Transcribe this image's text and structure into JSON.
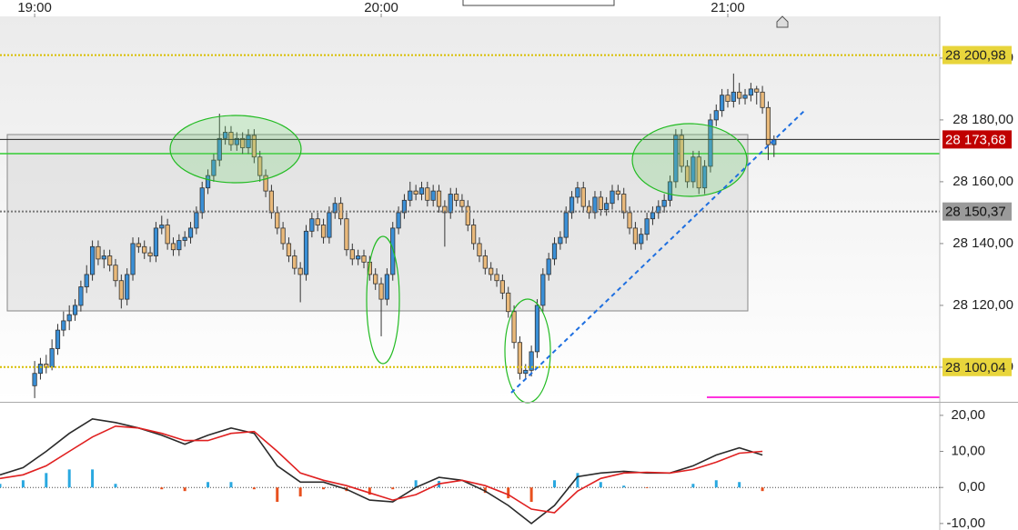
{
  "chart_data": [
    {
      "type": "candlestick",
      "up_color": "#3a8fd6",
      "down_color": "#e9b97a",
      "outline_color": "#333333",
      "xlim": [
        -6,
        156.7
      ],
      "xticks": [
        {
          "value": 0,
          "label": "19:00"
        },
        {
          "value": 60,
          "label": "20:00"
        },
        {
          "value": 120,
          "label": "21:00"
        }
      ],
      "ylim": [
        28088.8,
        28213.5
      ],
      "yticks": [
        {
          "value": 28100,
          "label": "28 100,00"
        },
        {
          "value": 28120,
          "label": "28 120,00"
        },
        {
          "value": 28140,
          "label": "28 140,00"
        },
        {
          "value": 28160,
          "label": "28 160,00"
        },
        {
          "value": 28180,
          "label": "28 180,00"
        },
        {
          "value": 28200,
          "label": "28 200,00"
        }
      ],
      "levels": [
        {
          "value": 28200.98,
          "label": "28 200,98",
          "line_color": "#d8be00",
          "dash": true,
          "box_color": "#e8d53c",
          "text_color": "#222222"
        },
        {
          "value": 28100.04,
          "label": "28 100,04",
          "line_color": "#d8be00",
          "dash": true,
          "box_color": "#e8d53c",
          "text_color": "#222222"
        },
        {
          "value": 28150.37,
          "label": "28 150,37",
          "line_color": "#777777",
          "dash": true,
          "box_color": "#9a9a9a",
          "text_color": "#111111"
        },
        {
          "value": 28173.68,
          "label": "28 173,68",
          "line_color": "#222222",
          "dash": false,
          "box_color": "#c00000",
          "text_color": "#ffffff"
        }
      ],
      "x": [
        0,
        1,
        2,
        3,
        4,
        5,
        6,
        7,
        8,
        9,
        10,
        11,
        12,
        13,
        14,
        15,
        16,
        17,
        18,
        19,
        20,
        21,
        22,
        23,
        24,
        25,
        26,
        27,
        28,
        29,
        30,
        31,
        32,
        33,
        34,
        35,
        36,
        37,
        38,
        39,
        40,
        41,
        42,
        43,
        44,
        45,
        46,
        47,
        48,
        49,
        50,
        51,
        52,
        53,
        54,
        55,
        56,
        57,
        58,
        59,
        60,
        61,
        62,
        63,
        64,
        65,
        66,
        67,
        68,
        69,
        70,
        71,
        72,
        73,
        74,
        75,
        76,
        77,
        78,
        79,
        80,
        81,
        82,
        83,
        84,
        85,
        86,
        87,
        88,
        89,
        90,
        91,
        92,
        93,
        94,
        95,
        96,
        97,
        98,
        99,
        100,
        101,
        102,
        103,
        104,
        105,
        106,
        107,
        108,
        109,
        110,
        111,
        112,
        113,
        114,
        115,
        116,
        117,
        118,
        119,
        120,
        121,
        122,
        123,
        124,
        125,
        126,
        127,
        128
      ],
      "ohlc": [
        [
          28094,
          28102,
          28090,
          28098
        ],
        [
          28098,
          28103,
          28096,
          28101
        ],
        [
          28101,
          28104,
          28098,
          28100
        ],
        [
          28100,
          28109,
          28099,
          28106
        ],
        [
          28106,
          28114,
          28104,
          28112
        ],
        [
          28112,
          28118,
          28110,
          28115
        ],
        [
          28115,
          28120,
          28112,
          28117
        ],
        [
          28117,
          28122,
          28115,
          28120
        ],
        [
          28120,
          28128,
          28118,
          28126
        ],
        [
          28126,
          28133,
          28124,
          28130
        ],
        [
          28130,
          28141,
          28128,
          28139
        ],
        [
          28139,
          28141,
          28133,
          28135
        ],
        [
          28135,
          28138,
          28132,
          28136
        ],
        [
          28136,
          28138,
          28131,
          28133
        ],
        [
          28133,
          28135,
          28126,
          28128
        ],
        [
          28128,
          28130,
          28119,
          28122
        ],
        [
          28122,
          28132,
          28120,
          28130
        ],
        [
          28130,
          28142,
          28128,
          28140
        ],
        [
          28140,
          28142,
          28137,
          28139
        ],
        [
          28139,
          28141,
          28135,
          28137
        ],
        [
          28137,
          28139,
          28134,
          28136
        ],
        [
          28136,
          28147,
          28134,
          28145
        ],
        [
          28145,
          28149,
          28143,
          28146
        ],
        [
          28146,
          28148,
          28138,
          28140
        ],
        [
          28140,
          28142,
          28136,
          28138
        ],
        [
          28138,
          28143,
          28136,
          28141
        ],
        [
          28141,
          28144,
          28139,
          28142
        ],
        [
          28142,
          28147,
          28140,
          28145
        ],
        [
          28145,
          28152,
          28143,
          28150
        ],
        [
          28150,
          28160,
          28148,
          28158
        ],
        [
          28158,
          28164,
          28156,
          28162
        ],
        [
          28162,
          28169,
          28160,
          28167
        ],
        [
          28167,
          28182,
          28165,
          28174
        ],
        [
          28174,
          28178,
          28172,
          28176
        ],
        [
          28176,
          28178,
          28170,
          28172
        ],
        [
          28172,
          28176,
          28170,
          28174
        ],
        [
          28174,
          28176,
          28169,
          28171
        ],
        [
          28171,
          28177,
          28169,
          28175
        ],
        [
          28175,
          28177,
          28166,
          28168
        ],
        [
          28168,
          28170,
          28160,
          28162
        ],
        [
          28162,
          28164,
          28155,
          28157
        ],
        [
          28157,
          28159,
          28148,
          28150
        ],
        [
          28150,
          28152,
          28143,
          28145
        ],
        [
          28145,
          28147,
          28138,
          28140
        ],
        [
          28140,
          28142,
          28134,
          28136
        ],
        [
          28136,
          28138,
          28130,
          28132
        ],
        [
          28132,
          28134,
          28121,
          28130
        ],
        [
          28130,
          28146,
          28128,
          28144
        ],
        [
          28144,
          28150,
          28142,
          28148
        ],
        [
          28148,
          28150,
          28144,
          28146
        ],
        [
          28146,
          28148,
          28140,
          28142
        ],
        [
          28142,
          28152,
          28140,
          28150
        ],
        [
          28150,
          28155,
          28148,
          28153
        ],
        [
          28153,
          28155,
          28146,
          28148
        ],
        [
          28148,
          28150,
          28136,
          28138
        ],
        [
          28138,
          28140,
          28133,
          28135
        ],
        [
          28135,
          28138,
          28133,
          28136
        ],
        [
          28136,
          28138,
          28132,
          28134
        ],
        [
          28134,
          28136,
          28128,
          28130
        ],
        [
          28130,
          28132,
          28125,
          28127
        ],
        [
          28127,
          28129,
          28110,
          28122
        ],
        [
          28122,
          28132,
          28120,
          28130
        ],
        [
          28130,
          28147,
          28128,
          28145
        ],
        [
          28145,
          28152,
          28143,
          28150
        ],
        [
          28150,
          28156,
          28148,
          28154
        ],
        [
          28154,
          28160,
          28152,
          28157
        ],
        [
          28157,
          28159,
          28154,
          28156
        ],
        [
          28156,
          28160,
          28154,
          28158
        ],
        [
          28158,
          28160,
          28152,
          28154
        ],
        [
          28154,
          28159,
          28152,
          28157
        ],
        [
          28157,
          28159,
          28150,
          28152
        ],
        [
          28152,
          28154,
          28139,
          28150
        ],
        [
          28150,
          28158,
          28148,
          28156
        ],
        [
          28156,
          28158,
          28152,
          28154
        ],
        [
          28154,
          28156,
          28150,
          28152
        ],
        [
          28152,
          28154,
          28144,
          28146
        ],
        [
          28146,
          28148,
          28138,
          28140
        ],
        [
          28140,
          28142,
          28134,
          28136
        ],
        [
          28136,
          28138,
          28130,
          28132
        ],
        [
          28132,
          28134,
          28128,
          28130
        ],
        [
          28130,
          28132,
          28126,
          28128
        ],
        [
          28128,
          28130,
          28122,
          28124
        ],
        [
          28124,
          28126,
          28116,
          28118
        ],
        [
          28118,
          28120,
          28106,
          28108
        ],
        [
          28108,
          28110,
          28096,
          28098
        ],
        [
          28098,
          28101,
          28096,
          28099
        ],
        [
          28099,
          28107,
          28097,
          28105
        ],
        [
          28105,
          28122,
          28103,
          28120
        ],
        [
          28120,
          28132,
          28118,
          28130
        ],
        [
          28130,
          28137,
          28128,
          28135
        ],
        [
          28135,
          28142,
          28133,
          28140
        ],
        [
          28140,
          28144,
          28138,
          28142
        ],
        [
          28142,
          28152,
          28140,
          28150
        ],
        [
          28150,
          28157,
          28148,
          28155
        ],
        [
          28155,
          28160,
          28153,
          28158
        ],
        [
          28158,
          28160,
          28150,
          28152
        ],
        [
          28152,
          28154,
          28148,
          28150
        ],
        [
          28150,
          28157,
          28148,
          28155
        ],
        [
          28155,
          28157,
          28149,
          28151
        ],
        [
          28151,
          28155,
          28149,
          28153
        ],
        [
          28153,
          28159,
          28151,
          28157
        ],
        [
          28157,
          28159,
          28154,
          28156
        ],
        [
          28156,
          28158,
          28148,
          28150
        ],
        [
          28150,
          28152,
          28143,
          28145
        ],
        [
          28145,
          28147,
          28138,
          28140
        ],
        [
          28140,
          28145,
          28138,
          28143
        ],
        [
          28143,
          28150,
          28141,
          28148
        ],
        [
          28148,
          28152,
          28146,
          28150
        ],
        [
          28150,
          28154,
          28148,
          28152
        ],
        [
          28152,
          28156,
          28150,
          28154
        ],
        [
          28154,
          28162,
          28152,
          28160
        ],
        [
          28160,
          28177,
          28158,
          28175
        ],
        [
          28175,
          28177,
          28163,
          28165
        ],
        [
          28165,
          28167,
          28158,
          28160
        ],
        [
          28160,
          28170,
          28158,
          28168
        ],
        [
          28168,
          28170,
          28156,
          28158
        ],
        [
          28158,
          28167,
          28156,
          28165
        ],
        [
          28165,
          28182,
          28163,
          28180
        ],
        [
          28180,
          28185,
          28178,
          28183
        ],
        [
          28183,
          28190,
          28181,
          28188
        ],
        [
          28188,
          28190,
          28184,
          28186
        ],
        [
          28186,
          28195,
          28184,
          28189
        ],
        [
          28189,
          28192,
          28185,
          28187
        ],
        [
          28187,
          28190,
          28185,
          28188
        ],
        [
          28188,
          28192,
          28186,
          28190
        ],
        [
          28190,
          28191,
          28185,
          28189
        ],
        [
          28189,
          28191,
          28182,
          28184
        ],
        [
          28184,
          28186,
          28167,
          28172
        ],
        [
          28172,
          28175,
          28168,
          28173.68
        ]
      ]
    },
    {
      "type": "macd",
      "xlim": [
        -6,
        156.7
      ],
      "ylim": [
        -11.8,
        23.5
      ],
      "yticks": [
        {
          "value": -10,
          "label": "-10,00"
        },
        {
          "value": 0,
          "label": "0,00"
        },
        {
          "value": 10,
          "label": "10,00"
        },
        {
          "value": 20,
          "label": "20,00"
        }
      ],
      "x": [
        -6,
        -2,
        2,
        6,
        10,
        14,
        18,
        22,
        26,
        30,
        34,
        38,
        42,
        46,
        50,
        54,
        58,
        62,
        66,
        70,
        74,
        78,
        82,
        86,
        90,
        94,
        98,
        102,
        106,
        110,
        114,
        118,
        122,
        126
      ],
      "series": [
        {
          "kind": "bar",
          "pos_color": "#29a8e0",
          "neg_color": "#e8501e",
          "values": [
            1,
            2,
            4,
            5,
            5,
            1,
            0,
            -0.5,
            -1,
            1.5,
            1.5,
            -0.5,
            -4,
            -2.5,
            -0.5,
            -1,
            -2,
            -0.5,
            2,
            1.8,
            0,
            -1.5,
            -3,
            -4,
            2,
            4,
            1.5,
            0.5,
            -0.2,
            0,
            1,
            2,
            1.5,
            -1
          ]
        },
        {
          "kind": "line",
          "color": "#2a2a2a",
          "values": [
            3.5,
            5.5,
            10,
            15,
            19,
            18,
            16.5,
            14.5,
            12,
            14.5,
            16.5,
            15,
            6,
            1.5,
            1.5,
            -0.5,
            -3.5,
            -4,
            0,
            2.8,
            2,
            -1,
            -5,
            -10,
            -5,
            3,
            4,
            4.5,
            4,
            4,
            6,
            9,
            11,
            9
          ]
        },
        {
          "kind": "line",
          "color": "#e02020",
          "values": [
            2.5,
            3.5,
            6,
            10,
            14,
            17,
            16.5,
            15,
            13,
            13,
            15,
            15.5,
            10,
            4,
            2,
            0.5,
            -1.5,
            -3.5,
            -2,
            1,
            2,
            0.5,
            -2,
            -6,
            -7,
            -1,
            2.5,
            4,
            4.2,
            4,
            5,
            7,
            9.5,
            10
          ]
        }
      ]
    }
  ]
}
